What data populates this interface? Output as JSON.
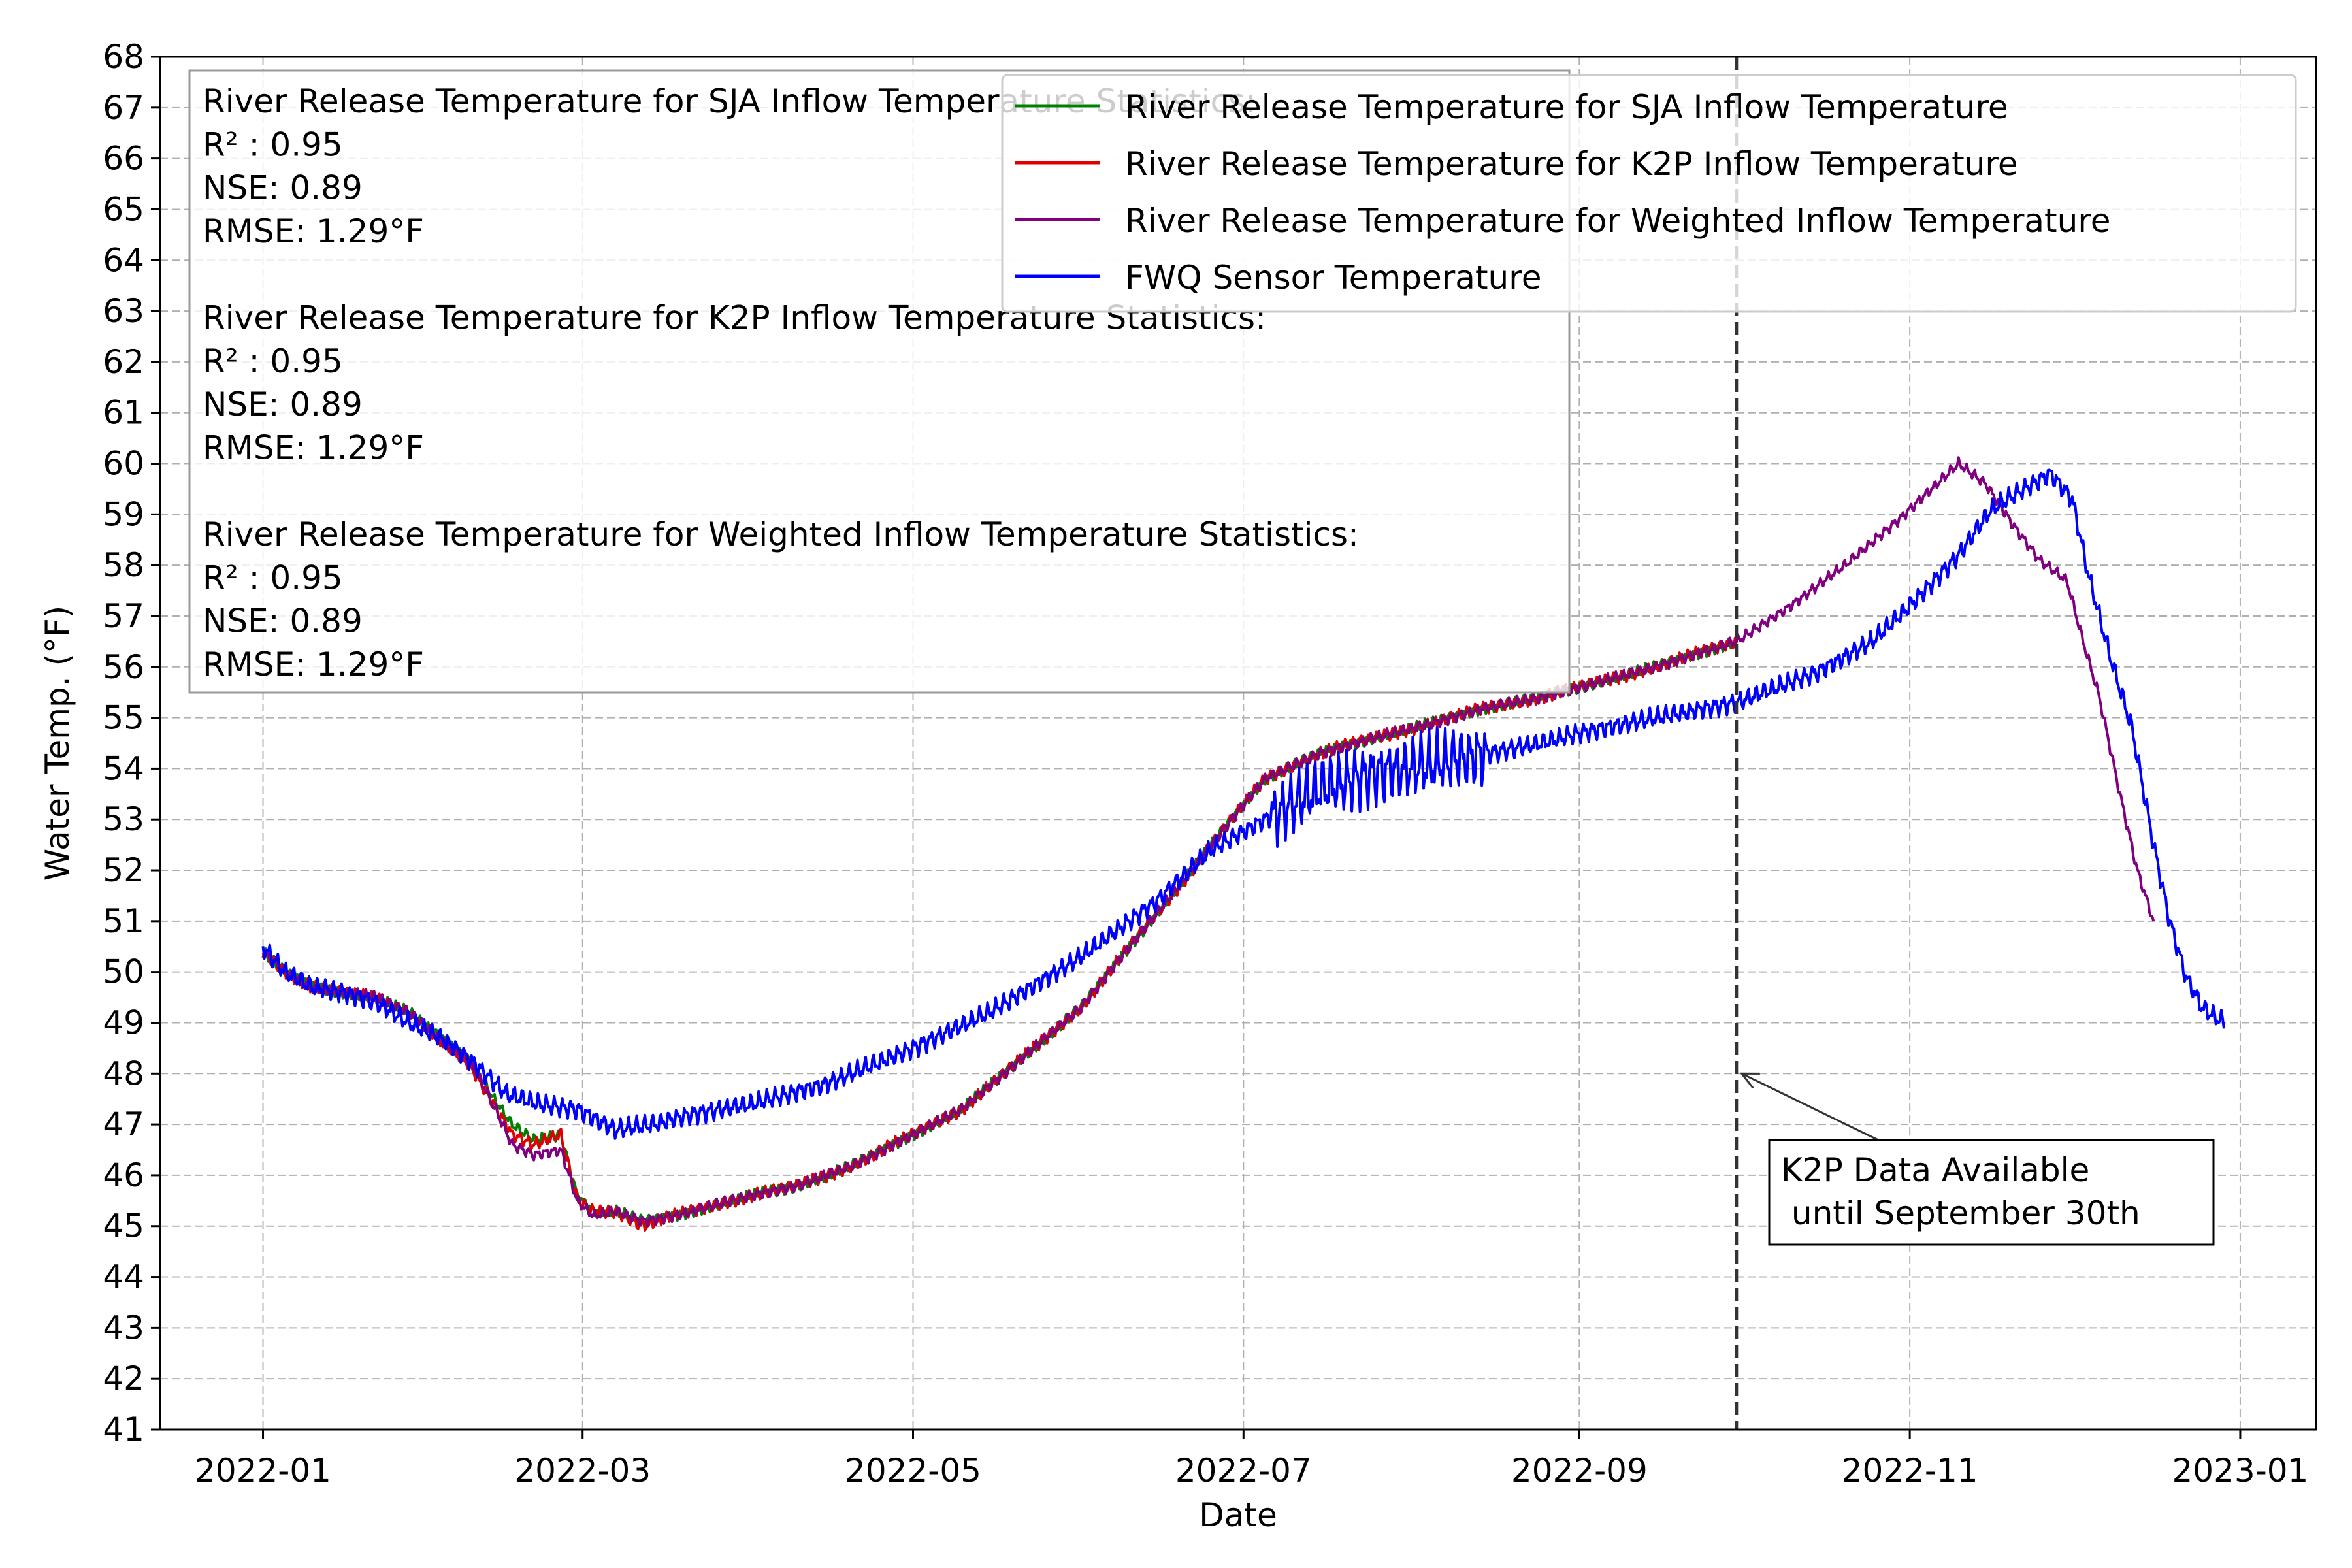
{
  "chart_data": {
    "type": "line",
    "title": "",
    "xlabel": "Date",
    "ylabel": "Water Temp. (°F)",
    "xlim": [
      "2021-12-13",
      "2023-01-15"
    ],
    "ylim": [
      41,
      68
    ],
    "x_ticks": [
      "2022-01-01",
      "2022-03-01",
      "2022-05-01",
      "2022-07-01",
      "2022-09-01",
      "2022-11-01",
      "2023-01-01"
    ],
    "x_tick_labels": [
      "2022-01",
      "2022-03",
      "2022-05",
      "2022-07",
      "2022-09",
      "2022-11",
      "2023-01"
    ],
    "y_ticks": [
      41,
      42,
      43,
      44,
      45,
      46,
      47,
      48,
      49,
      50,
      51,
      52,
      53,
      54,
      55,
      56,
      57,
      58,
      59,
      60,
      61,
      62,
      63,
      64,
      65,
      66,
      67,
      68
    ],
    "grid": true,
    "legend_position": "top-right",
    "series": [
      {
        "name": "River Release Temperature for SJA Inflow Temperature",
        "color": "#008000",
        "noise": 0.12,
        "points": [
          [
            "2022-01-01",
            50.4
          ],
          [
            "2022-01-05",
            50.0
          ],
          [
            "2022-01-10",
            49.7
          ],
          [
            "2022-01-16",
            49.6
          ],
          [
            "2022-01-22",
            49.5
          ],
          [
            "2022-01-28",
            49.2
          ],
          [
            "2022-02-03",
            48.7
          ],
          [
            "2022-02-08",
            48.3
          ],
          [
            "2022-02-12",
            47.6
          ],
          [
            "2022-02-16",
            47.0
          ],
          [
            "2022-02-20",
            46.7
          ],
          [
            "2022-02-25",
            46.8
          ],
          [
            "2022-02-28",
            45.6
          ],
          [
            "2022-03-03",
            45.3
          ],
          [
            "2022-03-07",
            45.3
          ],
          [
            "2022-03-12",
            45.1
          ],
          [
            "2022-03-18",
            45.2
          ],
          [
            "2022-03-25",
            45.4
          ],
          [
            "2022-04-01",
            45.6
          ],
          [
            "2022-04-10",
            45.8
          ],
          [
            "2022-04-20",
            46.2
          ],
          [
            "2022-05-01",
            46.8
          ],
          [
            "2022-05-10",
            47.3
          ],
          [
            "2022-05-20",
            48.2
          ],
          [
            "2022-06-01",
            49.3
          ],
          [
            "2022-06-10",
            50.5
          ],
          [
            "2022-06-20",
            51.8
          ],
          [
            "2022-06-28",
            52.9
          ],
          [
            "2022-07-05",
            53.8
          ],
          [
            "2022-07-15",
            54.3
          ],
          [
            "2022-07-25",
            54.6
          ],
          [
            "2022-08-05",
            54.9
          ],
          [
            "2022-08-15",
            55.2
          ],
          [
            "2022-08-25",
            55.4
          ],
          [
            "2022-09-01",
            55.6
          ],
          [
            "2022-09-15",
            56.0
          ],
          [
            "2022-09-30",
            56.5
          ]
        ]
      },
      {
        "name": "River Release Temperature for K2P Inflow Temperature",
        "color": "#e00000",
        "noise": 0.14,
        "points": [
          [
            "2022-01-01",
            50.4
          ],
          [
            "2022-01-05",
            50.0
          ],
          [
            "2022-01-10",
            49.7
          ],
          [
            "2022-01-16",
            49.6
          ],
          [
            "2022-01-22",
            49.5
          ],
          [
            "2022-01-28",
            49.2
          ],
          [
            "2022-02-03",
            48.6
          ],
          [
            "2022-02-08",
            48.2
          ],
          [
            "2022-02-12",
            47.5
          ],
          [
            "2022-02-16",
            46.8
          ],
          [
            "2022-02-20",
            46.6
          ],
          [
            "2022-02-25",
            46.8
          ],
          [
            "2022-02-28",
            45.5
          ],
          [
            "2022-03-03",
            45.3
          ],
          [
            "2022-03-07",
            45.3
          ],
          [
            "2022-03-12",
            45.0
          ],
          [
            "2022-03-18",
            45.2
          ],
          [
            "2022-03-25",
            45.4
          ],
          [
            "2022-04-01",
            45.6
          ],
          [
            "2022-04-10",
            45.8
          ],
          [
            "2022-04-20",
            46.2
          ],
          [
            "2022-05-01",
            46.8
          ],
          [
            "2022-05-10",
            47.3
          ],
          [
            "2022-05-20",
            48.2
          ],
          [
            "2022-06-01",
            49.3
          ],
          [
            "2022-06-10",
            50.5
          ],
          [
            "2022-06-20",
            51.8
          ],
          [
            "2022-06-28",
            52.9
          ],
          [
            "2022-07-05",
            53.8
          ],
          [
            "2022-07-15",
            54.3
          ],
          [
            "2022-07-25",
            54.6
          ],
          [
            "2022-08-05",
            54.9
          ],
          [
            "2022-08-15",
            55.2
          ],
          [
            "2022-08-25",
            55.4
          ],
          [
            "2022-09-01",
            55.6
          ],
          [
            "2022-09-15",
            56.0
          ],
          [
            "2022-09-30",
            56.5
          ]
        ]
      },
      {
        "name": "River Release Temperature for Weighted Inflow Temperature",
        "color": "#800080",
        "noise": 0.12,
        "points": [
          [
            "2022-01-01",
            50.4
          ],
          [
            "2022-01-05",
            50.0
          ],
          [
            "2022-01-10",
            49.7
          ],
          [
            "2022-01-16",
            49.6
          ],
          [
            "2022-01-22",
            49.5
          ],
          [
            "2022-01-28",
            49.2
          ],
          [
            "2022-02-03",
            48.7
          ],
          [
            "2022-02-08",
            48.3
          ],
          [
            "2022-02-12",
            47.5
          ],
          [
            "2022-02-16",
            46.6
          ],
          [
            "2022-02-20",
            46.4
          ],
          [
            "2022-02-25",
            46.5
          ],
          [
            "2022-02-28",
            45.5
          ],
          [
            "2022-03-03",
            45.2
          ],
          [
            "2022-03-07",
            45.3
          ],
          [
            "2022-03-12",
            45.1
          ],
          [
            "2022-03-18",
            45.2
          ],
          [
            "2022-03-25",
            45.4
          ],
          [
            "2022-04-01",
            45.6
          ],
          [
            "2022-04-10",
            45.8
          ],
          [
            "2022-04-20",
            46.2
          ],
          [
            "2022-05-01",
            46.8
          ],
          [
            "2022-05-10",
            47.3
          ],
          [
            "2022-05-20",
            48.2
          ],
          [
            "2022-06-01",
            49.3
          ],
          [
            "2022-06-10",
            50.5
          ],
          [
            "2022-06-20",
            51.8
          ],
          [
            "2022-06-28",
            52.9
          ],
          [
            "2022-07-05",
            53.8
          ],
          [
            "2022-07-15",
            54.3
          ],
          [
            "2022-07-25",
            54.6
          ],
          [
            "2022-08-05",
            54.9
          ],
          [
            "2022-08-15",
            55.2
          ],
          [
            "2022-08-25",
            55.4
          ],
          [
            "2022-09-01",
            55.6
          ],
          [
            "2022-09-15",
            56.0
          ],
          [
            "2022-09-30",
            56.5
          ],
          [
            "2022-10-10",
            57.2
          ],
          [
            "2022-10-20",
            58.0
          ],
          [
            "2022-10-30",
            58.9
          ],
          [
            "2022-11-06",
            59.6
          ],
          [
            "2022-11-10",
            60.0
          ],
          [
            "2022-11-15",
            59.6
          ],
          [
            "2022-11-20",
            58.8
          ],
          [
            "2022-11-25",
            58.1
          ],
          [
            "2022-11-30",
            57.7
          ],
          [
            "2022-12-03",
            56.5
          ],
          [
            "2022-12-06",
            55.4
          ],
          [
            "2022-12-10",
            53.4
          ],
          [
            "2022-12-13",
            52.0
          ],
          [
            "2022-12-16",
            51.0
          ]
        ]
      },
      {
        "name": "FWQ Sensor Temperature",
        "color": "#0000ff",
        "noise": 0.22,
        "points": [
          [
            "2022-01-01",
            50.5
          ],
          [
            "2022-01-05",
            50.0
          ],
          [
            "2022-01-10",
            49.7
          ],
          [
            "2022-01-16",
            49.6
          ],
          [
            "2022-01-22",
            49.4
          ],
          [
            "2022-01-28",
            49.0
          ],
          [
            "2022-02-03",
            48.7
          ],
          [
            "2022-02-09",
            48.2
          ],
          [
            "2022-02-15",
            47.6
          ],
          [
            "2022-02-21",
            47.4
          ],
          [
            "2022-02-28",
            47.3
          ],
          [
            "2022-03-07",
            46.9
          ],
          [
            "2022-03-14",
            47.0
          ],
          [
            "2022-03-21",
            47.2
          ],
          [
            "2022-04-01",
            47.4
          ],
          [
            "2022-04-15",
            47.8
          ],
          [
            "2022-05-01",
            48.5
          ],
          [
            "2022-05-15",
            49.2
          ],
          [
            "2022-06-01",
            50.3
          ],
          [
            "2022-06-15",
            51.4
          ],
          [
            "2022-06-25",
            52.4
          ],
          [
            "2022-07-05",
            53.0
          ],
          [
            "2022-07-15",
            53.6
          ],
          [
            "2022-07-25",
            53.9
          ],
          [
            "2022-08-05",
            54.1
          ],
          [
            "2022-08-15",
            54.3
          ],
          [
            "2022-08-25",
            54.5
          ],
          [
            "2022-09-01",
            54.7
          ],
          [
            "2022-09-15",
            55.0
          ],
          [
            "2022-09-30",
            55.3
          ],
          [
            "2022-10-15",
            55.9
          ],
          [
            "2022-10-25",
            56.5
          ],
          [
            "2022-11-01",
            57.2
          ],
          [
            "2022-11-10",
            58.2
          ],
          [
            "2022-11-16",
            59.1
          ],
          [
            "2022-11-22",
            59.5
          ],
          [
            "2022-11-27",
            59.8
          ],
          [
            "2022-12-01",
            59.3
          ],
          [
            "2022-12-04",
            57.8
          ],
          [
            "2022-12-08",
            56.2
          ],
          [
            "2022-12-12",
            54.8
          ],
          [
            "2022-12-16",
            52.5
          ],
          [
            "2022-12-19",
            51.0
          ],
          [
            "2022-12-22",
            49.9
          ],
          [
            "2022-12-25",
            49.3
          ],
          [
            "2022-12-29",
            49.0
          ]
        ]
      }
    ],
    "vline": {
      "x": "2022-09-30",
      "style": "dashed",
      "color": "#333333"
    },
    "annotation": {
      "lines": [
        "K2P Data Available",
        " until September 30th"
      ],
      "arrow_target": [
        "2022-09-30",
        48.0
      ]
    },
    "stats_box": {
      "lines": [
        "River Release Temperature for SJA Inflow Temperature Statistics:",
        "R² : 0.95",
        "NSE: 0.89",
        "RMSE: 1.29°F",
        "",
        "River Release Temperature for K2P Inflow Temperature Statistics:",
        "R² : 0.95",
        "NSE: 0.89",
        "RMSE: 1.29°F",
        "",
        "River Release Temperature for Weighted Inflow Temperature Statistics:",
        "R² : 0.95",
        "NSE: 0.89",
        "RMSE: 1.29°F"
      ]
    }
  }
}
